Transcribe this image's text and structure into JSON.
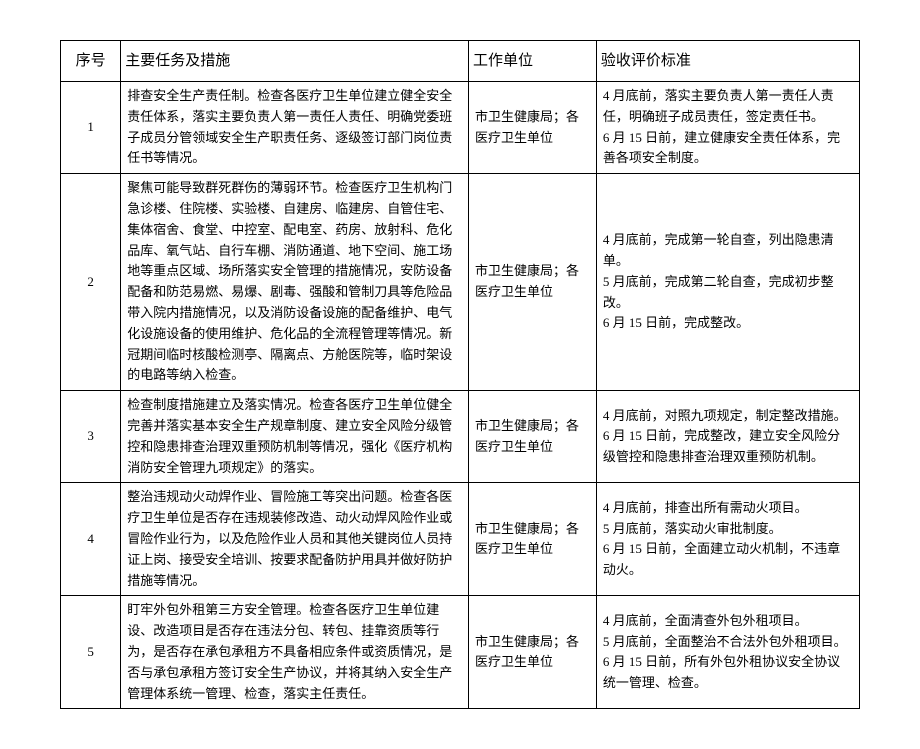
{
  "columns": [
    "序号",
    "主要任务及措施",
    "工作单位",
    "验收评价标准"
  ],
  "rows": [
    {
      "num": "1",
      "task": "排查安全生产责任制。检查各医疗卫生单位建立健全安全责任体系，落实主要负责人第一责任人责任、明确党委班子成员分管领域安全生产职责任务、逐级签订部门岗位责任书等情况。",
      "unit": "市卫生健康局；各医疗卫生单位",
      "eval": "4 月底前，落实主要负责人第一责任人责任，明确班子成员责任，签定责任书。\n6 月 15 日前，建立健康安全责任体系，完善各项安全制度。"
    },
    {
      "num": "2",
      "task": "聚焦可能导致群死群伤的薄弱环节。检查医疗卫生机构门急诊楼、住院楼、实验楼、自建房、临建房、自管住宅、集体宿舍、食堂、中控室、配电室、药房、放射科、危化品库、氧气站、自行车棚、消防通道、地下空间、施工场地等重点区域、场所落实安全管理的措施情况，安防设备配备和防范易燃、易爆、剧毒、强酸和管制刀具等危险品带入院内措施情况，以及消防设备设施的配备维护、电气化设施设备的使用维护、危化品的全流程管理等情况。新冠期间临时核酸检测亭、隔离点、方舱医院等，临时架设的电路等纳入检查。",
      "unit": "市卫生健康局；各医疗卫生单位",
      "eval": "4 月底前，完成第一轮自查，列出隐患清单。\n5 月底前，完成第二轮自查，完成初步整改。\n6 月 15 日前，完成整改。"
    },
    {
      "num": "3",
      "task": "检查制度措施建立及落实情况。检查各医疗卫生单位健全完善并落实基本安全生产规章制度、建立安全风险分级管控和隐患排查治理双重预防机制等情况，强化《医疗机构消防安全管理九项规定》的落实。",
      "unit": "市卫生健康局；各医疗卫生单位",
      "eval": "4 月底前，对照九项规定，制定整改措施。\n6 月 15 日前，完成整改，建立安全风险分级管控和隐患排查治理双重预防机制。"
    },
    {
      "num": "4",
      "task": "整治违规动火动焊作业、冒险施工等突出问题。检查各医疗卫生单位是否存在违规装修改造、动火动焊风险作业或冒险作业行为，以及危险作业人员和其他关键岗位人员持证上岗、接受安全培训、按要求配备防护用具并做好防护措施等情况。",
      "unit": "市卫生健康局；各医疗卫生单位",
      "eval": "4 月底前，排查出所有需动火项目。\n5 月底前，落实动火审批制度。\n6 月 15 日前，全面建立动火机制，不违章动火。"
    },
    {
      "num": "5",
      "task": "盯牢外包外租第三方安全管理。检查各医疗卫生单位建设、改造项目是否存在违法分包、转包、挂靠资质等行为，是否存在承包承租方不具备相应条件或资质情况，是否与承包承租方签订安全生产协议，并将其纳入安全生产管理体系统一管理、检查，落实主任责任。",
      "unit": "市卫生健康局；各医疗卫生单位",
      "eval": "4 月底前，全面清查外包外租项目。\n5 月底前，全面整治不合法外包外租项目。\n6 月 15 日前，所有外包外租协议安全协议统一管理、检查。"
    }
  ]
}
